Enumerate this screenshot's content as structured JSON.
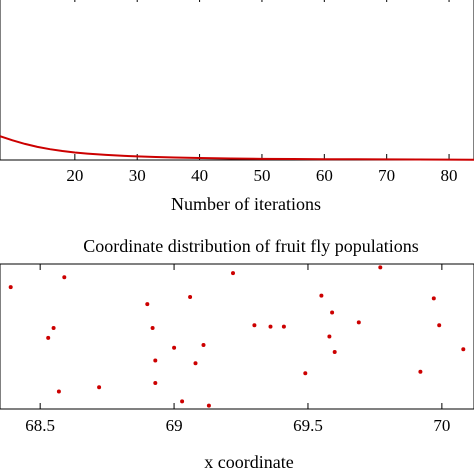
{
  "chart_data": [
    {
      "type": "line",
      "title": "",
      "xlabel": "Number of iterations",
      "ylabel": "",
      "xlim": [
        8,
        84
      ],
      "ylim": [
        0,
        1
      ],
      "grid": false,
      "legend": "none",
      "xticks": [
        20,
        30,
        40,
        50,
        60,
        70,
        80
      ],
      "xtick_labels": [
        "20",
        "30",
        "40",
        "50",
        "60",
        "70",
        "80"
      ],
      "series": [
        {
          "color": "#cc0000",
          "x": [
            8,
            10,
            12,
            14,
            16,
            18,
            20,
            22,
            25,
            28,
            30,
            33,
            36,
            40,
            45,
            50,
            55,
            60,
            65,
            70,
            75,
            80,
            84
          ],
          "y": [
            0.145,
            0.12,
            0.098,
            0.08,
            0.066,
            0.055,
            0.046,
            0.039,
            0.031,
            0.025,
            0.022,
            0.018,
            0.015,
            0.012,
            0.009,
            0.007,
            0.006,
            0.005,
            0.004,
            0.0035,
            0.003,
            0.0025,
            0.002
          ]
        }
      ]
    },
    {
      "type": "scatter",
      "title": "Coordinate distribution of fruit fly populations",
      "xlabel": "x coordinate",
      "ylabel": "",
      "xlim": [
        68.35,
        70.12
      ],
      "ylim": [
        0,
        1
      ],
      "grid": false,
      "legend": "none",
      "xticks": [
        68.5,
        69,
        69.5,
        70
      ],
      "xtick_labels": [
        "68.5",
        "69",
        "69.5",
        "70"
      ],
      "series": [
        {
          "color": "#cc0000",
          "x": [
            68.39,
            68.53,
            68.55,
            68.57,
            68.59,
            68.72,
            68.9,
            68.92,
            68.93,
            68.93,
            69.0,
            69.03,
            69.06,
            69.08,
            69.11,
            69.13,
            69.22,
            69.3,
            69.36,
            69.41,
            69.49,
            69.55,
            69.58,
            69.59,
            69.6,
            69.69,
            69.77,
            69.92,
            69.97,
            69.99,
            70.08
          ],
          "y": [
            0.85,
            0.49,
            0.56,
            0.11,
            0.92,
            0.14,
            0.73,
            0.56,
            0.17,
            0.33,
            0.42,
            0.04,
            0.78,
            0.31,
            0.44,
            0.01,
            0.95,
            0.58,
            0.57,
            0.57,
            0.24,
            0.79,
            0.5,
            0.67,
            0.39,
            0.6,
            0.99,
            0.25,
            0.77,
            0.58,
            0.41
          ]
        }
      ]
    }
  ]
}
